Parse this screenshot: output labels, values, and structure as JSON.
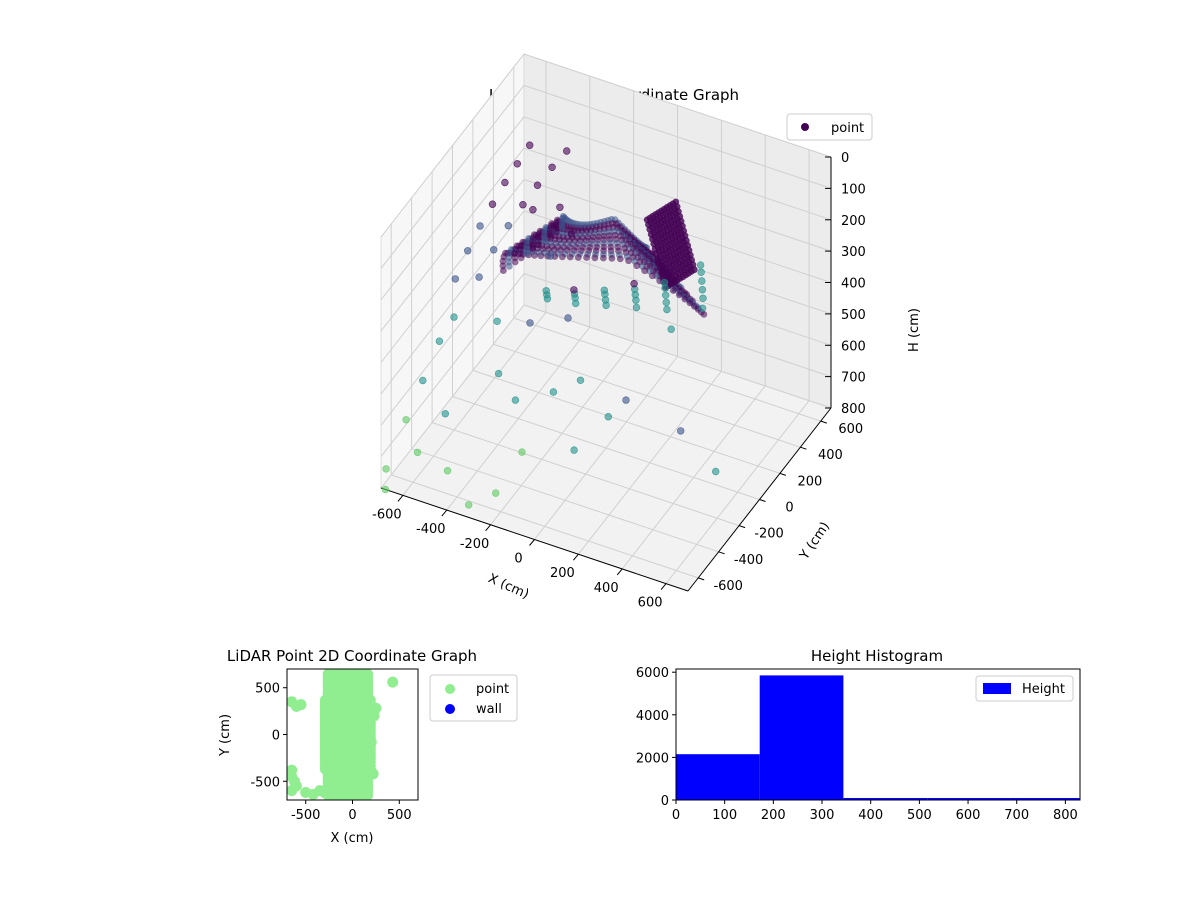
{
  "colors": {
    "point3d_dark": "#440154",
    "point3d_mid": "#3b528b",
    "point3d_teal": "#21918c",
    "point3d_light": "#5ec962",
    "point2d": "#90ee90",
    "wall": "#0000ff",
    "hist": "#0000ff"
  },
  "chart_data": [
    {
      "type": "scatter",
      "projection": "3d",
      "title": "LiDAR Point 3D Coordinate Graph",
      "xlabel": "X (cm)",
      "ylabel": "Y (cm)",
      "zlabel": "H (cm)",
      "xlim": [
        -700,
        700
      ],
      "ylim": [
        -700,
        700
      ],
      "zlim": [
        0,
        800
      ],
      "z_inverted": true,
      "xticks": [
        -600,
        -400,
        -200,
        0,
        200,
        400,
        600
      ],
      "yticks": [
        -600,
        -400,
        -200,
        0,
        200,
        400,
        600
      ],
      "zticks": [
        0,
        100,
        200,
        300,
        400,
        500,
        600,
        700,
        800
      ],
      "legend": {
        "entries": [
          "point"
        ],
        "placement": "upper-right"
      },
      "colormap": "viridis",
      "grid": true,
      "series": [
        {
          "name": "point",
          "points": [
            [
              650,
              -450,
              15
            ],
            [
              610,
              -360,
              30
            ],
            [
              570,
              -280,
              45
            ],
            [
              530,
              -200,
              60
            ],
            [
              490,
              -120,
              75
            ],
            [
              450,
              -40,
              95
            ],
            [
              520,
              -520,
              20
            ],
            [
              480,
              -440,
              40
            ],
            [
              440,
              -360,
              60
            ],
            [
              400,
              -280,
              80
            ],
            [
              360,
              -200,
              105
            ],
            [
              400,
              -560,
              25
            ],
            [
              360,
              -480,
              45
            ],
            [
              320,
              -400,
              70
            ],
            [
              280,
              -320,
              95
            ],
            [
              240,
              -240,
              120
            ],
            [
              280,
              -600,
              30
            ],
            [
              240,
              -520,
              55
            ],
            [
              200,
              -440,
              80
            ],
            [
              160,
              -360,
              110
            ],
            [
              160,
              -640,
              35
            ],
            [
              120,
              -560,
              60
            ],
            [
              80,
              -480,
              90
            ],
            [
              40,
              -400,
              120
            ],
            [
              40,
              -660,
              40
            ],
            [
              0,
              -580,
              70
            ],
            [
              -40,
              -500,
              100
            ],
            [
              600,
              -650,
              10
            ],
            [
              620,
              -600,
              350
            ],
            [
              380,
              -620,
              300
            ],
            [
              640,
              -300,
              600
            ],
            [
              -650,
              -80,
              380
            ],
            [
              -640,
              20,
              330
            ],
            [
              -630,
              120,
              290
            ],
            [
              -620,
              220,
              260
            ],
            [
              -610,
              320,
              230
            ],
            [
              -600,
              420,
              210
            ],
            [
              -590,
              520,
              190
            ],
            [
              -560,
              -40,
              370
            ],
            [
              -540,
              60,
              320
            ],
            [
              -520,
              160,
              280
            ],
            [
              -500,
              260,
              250
            ],
            [
              -480,
              360,
              225
            ],
            [
              -460,
              460,
              205
            ],
            [
              -440,
              560,
              190
            ],
            [
              -620,
              -300,
              480
            ],
            [
              -640,
              -420,
              560
            ],
            [
              -660,
              -540,
              640
            ],
            [
              -600,
              -200,
              440
            ],
            [
              -580,
              -600,
              700
            ],
            [
              -700,
              -650,
              760
            ],
            [
              -680,
              -700,
              800
            ],
            [
              -500,
              -500,
              600
            ],
            [
              -420,
              -650,
              700
            ],
            [
              -300,
              -700,
              760
            ],
            [
              -200,
              -650,
              720
            ],
            [
              -150,
              -500,
              640
            ],
            [
              -350,
              -300,
              520
            ],
            [
              -250,
              -350,
              560
            ],
            [
              -100,
              -300,
              520
            ],
            [
              0,
              -250,
              480
            ],
            [
              50,
              -420,
              620
            ],
            [
              150,
              -300,
              540
            ],
            [
              -450,
              -100,
              460
            ],
            [
              -300,
              -100,
              430
            ],
            [
              -150,
              -50,
              400
            ],
            [
              -300,
              100,
              300
            ],
            [
              -250,
              200,
              260
            ],
            [
              -350,
              300,
              240
            ],
            [
              -450,
              250,
              250
            ]
          ]
        }
      ]
    },
    {
      "type": "scatter",
      "title": "LiDAR Point 2D Coordinate Graph",
      "xlabel": "X (cm)",
      "ylabel": "Y (cm)",
      "xlim": [
        -700,
        700
      ],
      "ylim": [
        -700,
        700
      ],
      "xticks": [
        -500,
        0,
        500
      ],
      "yticks": [
        -500,
        0,
        500
      ],
      "legend": {
        "entries": [
          "point",
          "wall"
        ],
        "placement": "outside-right"
      },
      "series": [
        {
          "name": "point",
          "points": [
            [
              -650,
              -450
            ],
            [
              -620,
              -500
            ],
            [
              -600,
              -550
            ],
            [
              -650,
              -600
            ],
            [
              -600,
              300
            ],
            [
              -650,
              350
            ],
            [
              -550,
              320
            ],
            [
              -650,
              -380
            ],
            [
              -420,
              -640
            ],
            [
              -350,
              -600
            ],
            [
              -150,
              -650
            ],
            [
              -80,
              -580
            ],
            [
              -500,
              -620
            ],
            [
              100,
              -650
            ],
            [
              150,
              -580
            ],
            [
              220,
              -420
            ],
            [
              230,
              200
            ],
            [
              250,
              280
            ],
            [
              200,
              -80
            ],
            [
              180,
              150
            ],
            [
              -50,
              620
            ],
            [
              80,
              600
            ],
            [
              -150,
              580
            ],
            [
              70,
              650
            ],
            [
              430,
              560
            ],
            [
              -250,
              600
            ],
            [
              -300,
              -620
            ],
            [
              -100,
              -620
            ]
          ]
        },
        {
          "name": "wall",
          "points": []
        }
      ]
    },
    {
      "type": "bar",
      "subtype": "histogram",
      "title": "Height Histogram",
      "xlabel": "",
      "ylabel": "",
      "bin_edges": [
        0,
        172,
        344,
        516,
        688,
        830
      ],
      "values": [
        2150,
        5850,
        40,
        30,
        25
      ],
      "xlim": [
        0,
        830
      ],
      "ylim": [
        0,
        6150
      ],
      "xticks": [
        0,
        100,
        200,
        300,
        400,
        500,
        600,
        700,
        800
      ],
      "yticks": [
        0,
        2000,
        4000,
        6000
      ],
      "legend": {
        "entries": [
          "Height"
        ],
        "placement": "upper-right"
      },
      "series": [
        {
          "name": "Height"
        }
      ]
    }
  ]
}
